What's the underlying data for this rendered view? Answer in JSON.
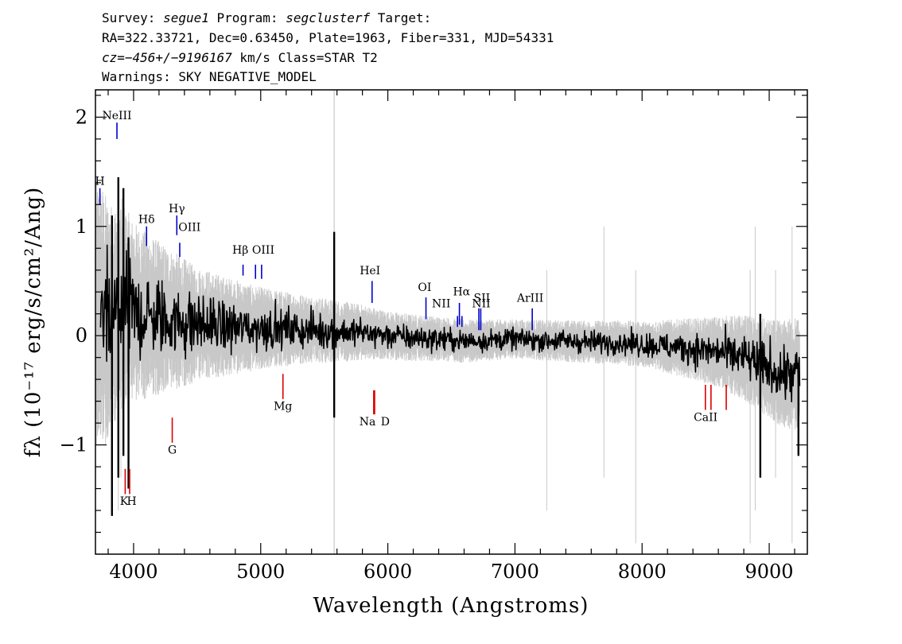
{
  "header": {
    "line1": {
      "survey_label": "Survey: ",
      "survey": "segue1",
      "program_label": " Program: ",
      "program": "segclusterf",
      "target_label": " Target:"
    },
    "line2": "RA=322.33721, Dec=0.63450, Plate=1963, Fiber=331, MJD=54331",
    "line3": {
      "cz": "cz=−456+/−9196167",
      "rest": " km/s Class=STAR T2"
    },
    "line4": "Warnings: SKY NEGATIVE_MODEL"
  },
  "chart_data": {
    "type": "line",
    "xlabel": "Wavelength (Angstroms)",
    "ylabel": "fλ (10⁻¹⁷ erg/s/cm²/Ang)",
    "xlim": [
      3700,
      9300
    ],
    "ylim": [
      -2.0,
      2.25
    ],
    "x_ticks": [
      4000,
      5000,
      6000,
      7000,
      8000,
      9000
    ],
    "x_tick_labels": [
      "4000",
      "5000",
      "6000",
      "7000",
      "8000",
      "9000"
    ],
    "y_ticks": [
      -1,
      0,
      1,
      2
    ],
    "y_tick_labels": [
      "−1",
      "0",
      "1",
      "2"
    ],
    "grid": false,
    "colors": {
      "flux": "#000000",
      "error": "#c8c8c8",
      "emission": "#0000cc",
      "absorption": "#dd0000"
    },
    "series": [
      {
        "x": [
          3750,
          3800,
          3850,
          3900,
          3950,
          4000,
          4050,
          4100,
          4150,
          4200,
          4300,
          4400,
          4500,
          4600,
          4700,
          4800,
          4900,
          5000,
          5200,
          5400,
          5600,
          5800,
          6000,
          6200,
          6400,
          6600,
          6800,
          7000,
          7200,
          7400,
          7600,
          7800,
          8000,
          8200,
          8400,
          8600,
          8800,
          9000,
          9100,
          9200
        ],
        "values": [
          0.2,
          0.1,
          0.15,
          0.3,
          0.25,
          0.22,
          0.2,
          0.18,
          0.17,
          0.16,
          0.14,
          0.12,
          0.1,
          0.1,
          0.08,
          0.08,
          0.07,
          0.07,
          0.06,
          0.05,
          0.04,
          0.03,
          0.0,
          -0.02,
          -0.03,
          -0.05,
          -0.04,
          -0.03,
          -0.04,
          -0.05,
          -0.06,
          -0.06,
          -0.08,
          -0.1,
          -0.12,
          -0.15,
          -0.2,
          -0.3,
          -0.35,
          -0.35
        ]
      }
    ],
    "error_band_halfwidth": {
      "x": [
        3750,
        4000,
        4500,
        5000,
        6000,
        7000,
        8000,
        8500,
        9000,
        9200
      ],
      "values": [
        0.8,
        0.55,
        0.35,
        0.25,
        0.15,
        0.12,
        0.14,
        0.2,
        0.3,
        0.35
      ]
    },
    "spikes": [
      {
        "x": 3830,
        "values": [
          -1.65,
          1.1
        ]
      },
      {
        "x": 3880,
        "values": [
          -1.3,
          1.45
        ]
      },
      {
        "x": 3920,
        "values": [
          -1.1,
          1.35
        ]
      },
      {
        "x": 3960,
        "values": [
          -1.4,
          0.9
        ]
      },
      {
        "x": 5578,
        "values": [
          -0.75,
          0.95
        ]
      },
      {
        "x": 8930,
        "values": [
          -1.3,
          0.2
        ]
      },
      {
        "x": 9230,
        "values": [
          -1.1,
          -0.3
        ]
      }
    ],
    "emission_lines": [
      {
        "label": "H",
        "x": 3735,
        "y1": 1.2,
        "y2": 1.35
      },
      {
        "label": "NeIII",
        "x": 3869,
        "y1": 1.8,
        "y2": 1.95
      },
      {
        "label": "Hδ",
        "x": 4102,
        "y1": 0.82,
        "y2": 1.0
      },
      {
        "label": "Hγ",
        "x": 4340,
        "y1": 0.92,
        "y2": 1.1
      },
      {
        "label": "OIII",
        "x": 4363,
        "y1": 0.72,
        "y2": 0.85
      },
      {
        "label": "Hβ",
        "x": 4861,
        "y1": 0.55,
        "y2": 0.65
      },
      {
        "label": "OIII",
        "x": 4959,
        "y1": 0.52,
        "y2": 0.65
      },
      {
        "label": "OIII",
        "x": 5007,
        "y1": 0.52,
        "y2": 0.65
      },
      {
        "label": "HeI",
        "x": 5876,
        "y1": 0.3,
        "y2": 0.5
      },
      {
        "label": "OI",
        "x": 6300,
        "y1": 0.15,
        "y2": 0.35
      },
      {
        "label": "NII",
        "x": 6548,
        "y1": 0.08,
        "y2": 0.18
      },
      {
        "label": "Hα",
        "x": 6563,
        "y1": 0.1,
        "y2": 0.3
      },
      {
        "label": "NII",
        "x": 6583,
        "y1": 0.08,
        "y2": 0.18
      },
      {
        "label": "SII",
        "x": 6716,
        "y1": 0.05,
        "y2": 0.25
      },
      {
        "label": "SII",
        "x": 6731,
        "y1": 0.05,
        "y2": 0.25
      },
      {
        "label": "ArIII",
        "x": 7136,
        "y1": 0.05,
        "y2": 0.25
      }
    ],
    "absorption_lines": [
      {
        "label": "K",
        "x": 3934,
        "y1": -1.45,
        "y2": -1.22
      },
      {
        "label": "H",
        "x": 3969,
        "y1": -1.45,
        "y2": -1.22
      },
      {
        "label": "G",
        "x": 4304,
        "y1": -0.98,
        "y2": -0.75
      },
      {
        "label": "Mg",
        "x": 5175,
        "y1": -0.58,
        "y2": -0.35
      },
      {
        "label": "Na",
        "x": 5889,
        "y1": -0.72,
        "y2": -0.5
      },
      {
        "label": "D",
        "x": 5896,
        "y1": -0.72,
        "y2": -0.5
      },
      {
        "label": "CaII",
        "x": 8498,
        "y1": -0.68,
        "y2": -0.45
      },
      {
        "label": "CaII",
        "x": 8542,
        "y1": -0.68,
        "y2": -0.45
      },
      {
        "label": "CaII",
        "x": 8662,
        "y1": -0.68,
        "y2": -0.45
      }
    ],
    "line_text_labels": [
      {
        "text": "H",
        "anchor_x": 3735,
        "pos": "above",
        "y": 1.38
      },
      {
        "text": "NeIII",
        "anchor_x": 3869,
        "pos": "above",
        "y": 1.98
      },
      {
        "text": "Hδ",
        "anchor_x": 4102,
        "pos": "above",
        "y": 1.03
      },
      {
        "text": "Hγ",
        "anchor_x": 4340,
        "pos": "above",
        "y": 1.13
      },
      {
        "text": "OIII",
        "anchor_x": 4440,
        "pos": "above",
        "y": 0.96
      },
      {
        "text": "Hβ",
        "anchor_x": 4840,
        "pos": "above",
        "y": 0.75
      },
      {
        "text": "OIII",
        "anchor_x": 5020,
        "pos": "above",
        "y": 0.75
      },
      {
        "text": "HeI",
        "anchor_x": 5860,
        "pos": "above",
        "y": 0.56
      },
      {
        "text": "OI",
        "anchor_x": 6290,
        "pos": "above",
        "y": 0.41
      },
      {
        "text": "NII",
        "anchor_x": 6420,
        "pos": "above",
        "y": 0.26
      },
      {
        "text": "Hα",
        "anchor_x": 6580,
        "pos": "above",
        "y": 0.37
      },
      {
        "text": "SII",
        "anchor_x": 6740,
        "pos": "above",
        "y": 0.31
      },
      {
        "text": "NII",
        "anchor_x": 6735,
        "pos": "above",
        "y": 0.26
      },
      {
        "text": "ArIII",
        "anchor_x": 7120,
        "pos": "above",
        "y": 0.31
      },
      {
        "text": "K",
        "anchor_x": 3925,
        "pos": "below",
        "y": -1.55
      },
      {
        "text": "H",
        "anchor_x": 3985,
        "pos": "below",
        "y": -1.55
      },
      {
        "text": "G",
        "anchor_x": 4304,
        "pos": "below",
        "y": -1.08
      },
      {
        "text": "Mg",
        "anchor_x": 5175,
        "pos": "below",
        "y": -0.68
      },
      {
        "text": "Na",
        "anchor_x": 5840,
        "pos": "below",
        "y": -0.82
      },
      {
        "text": "D",
        "anchor_x": 5980,
        "pos": "below",
        "y": -0.82
      },
      {
        "text": "CaII",
        "anchor_x": 8500,
        "pos": "below",
        "y": -0.78
      }
    ]
  }
}
